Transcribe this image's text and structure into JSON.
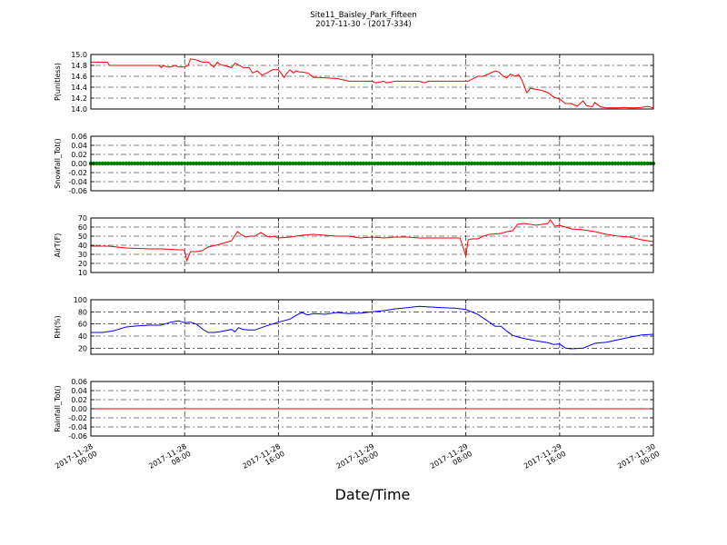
{
  "figure": {
    "title_line1": "Site11_Baisley_Park_Fifteen",
    "title_line2": "2017-11-30 - (2017-334)",
    "xlabel": "Date/Time"
  },
  "x_axis": {
    "tick_labels": [
      [
        "2017-11-28",
        "00:00"
      ],
      [
        "2017-11-28",
        "08:00"
      ],
      [
        "2017-11-28",
        "16:00"
      ],
      [
        "2017-11-29",
        "00:00"
      ],
      [
        "2017-11-29",
        "08:00"
      ],
      [
        "2017-11-29",
        "16:00"
      ],
      [
        "2017-11-30",
        "00:00"
      ]
    ],
    "range_hours": [
      0,
      48
    ]
  },
  "chart_data": [
    {
      "type": "line",
      "ylabel": "P(unitless)",
      "ylim": [
        14.0,
        15.0
      ],
      "yticks": [
        14.0,
        14.2,
        14.4,
        14.6,
        14.8,
        15.0
      ],
      "ytick_labels": [
        "14.0",
        "14.2",
        "14.4",
        "14.6",
        "14.8",
        "15.0"
      ],
      "color": "#ff0000",
      "marker": false,
      "grid": true,
      "series": [
        {
          "x_hours": [
            0,
            1.4,
            1.6,
            5.8,
            6.0,
            6.2,
            6.5,
            6.8,
            7.2,
            7.5,
            8.0,
            8.3,
            8.5,
            9.0,
            9.5,
            10.0,
            10.5,
            10.8,
            11.0,
            11.5,
            12.0,
            12.3,
            12.6,
            13.0,
            13.5,
            13.8,
            14.2,
            14.6,
            15.0,
            15.5,
            16.0,
            16.5,
            16.7,
            17.0,
            17.3,
            17.5,
            17.8,
            18.0,
            18.5,
            19.0,
            19.5,
            20.0,
            21.0,
            22.0,
            23.0,
            24.0,
            24.3,
            25.0,
            25.2,
            26.0,
            28.0,
            28.5,
            28.8,
            30.0,
            32.0,
            32.2,
            33.0,
            33.5,
            34.0,
            34.5,
            34.8,
            35.2,
            35.5,
            35.8,
            36.2,
            36.5,
            36.8,
            37.2,
            37.5,
            38.0,
            38.5,
            39.0,
            39.5,
            40.0,
            40.5,
            41.0,
            41.5,
            42.0,
            42.3,
            42.8,
            43.0,
            43.5,
            44.0,
            44.5,
            45.0,
            45.5,
            46.0,
            46.5,
            47.0,
            47.5,
            48.0
          ],
          "values": [
            14.86,
            14.86,
            14.8,
            14.8,
            14.76,
            14.8,
            14.77,
            14.77,
            14.8,
            14.77,
            14.77,
            14.8,
            14.92,
            14.9,
            14.86,
            14.86,
            14.77,
            14.86,
            14.82,
            14.79,
            14.76,
            14.84,
            14.81,
            14.76,
            14.76,
            14.66,
            14.7,
            14.62,
            14.66,
            14.72,
            14.72,
            14.58,
            14.65,
            14.72,
            14.66,
            14.7,
            14.68,
            14.68,
            14.66,
            14.58,
            14.58,
            14.57,
            14.56,
            14.51,
            14.51,
            14.51,
            14.48,
            14.51,
            14.48,
            14.51,
            14.51,
            14.48,
            14.51,
            14.51,
            14.51,
            14.51,
            14.6,
            14.6,
            14.65,
            14.7,
            14.68,
            14.6,
            14.57,
            14.64,
            14.6,
            14.63,
            14.52,
            14.3,
            14.38,
            14.36,
            14.34,
            14.3,
            14.22,
            14.18,
            14.1,
            14.1,
            14.05,
            14.15,
            14.06,
            14.04,
            14.12,
            14.04,
            14.02,
            14.02,
            14.02,
            14.03,
            14.02,
            14.02,
            14.03,
            14.05,
            14.02
          ]
        }
      ]
    },
    {
      "type": "line",
      "ylabel": "Snowfall_Tot()",
      "ylim": [
        -0.06,
        0.06
      ],
      "yticks": [
        -0.06,
        -0.04,
        -0.02,
        0.0,
        0.02,
        0.04,
        0.06
      ],
      "ytick_labels": [
        "-0.06",
        "-0.04",
        "-0.02",
        "0.00",
        "0.02",
        "0.04",
        "0.06"
      ],
      "color": "#008000",
      "marker": true,
      "grid": true,
      "series": [
        {
          "x_hours": [
            0,
            48
          ],
          "values": [
            0,
            0
          ]
        }
      ]
    },
    {
      "type": "line",
      "ylabel": "AirT(F)",
      "ylim": [
        10,
        70
      ],
      "yticks": [
        10,
        20,
        30,
        40,
        50,
        60,
        70
      ],
      "ytick_labels": [
        "10",
        "20",
        "30",
        "40",
        "50",
        "60",
        "70"
      ],
      "color": "#ff0000",
      "marker": false,
      "grid": true,
      "series": [
        {
          "x_hours": [
            0,
            1.5,
            3.0,
            5.0,
            6.0,
            7.5,
            7.9,
            8.0,
            8.2,
            8.5,
            9.0,
            9.5,
            10.0,
            11.0,
            12.0,
            12.5,
            12.8,
            13.2,
            13.6,
            14.0,
            14.5,
            15.0,
            15.3,
            15.6,
            16.0,
            17.0,
            17.5,
            18.0,
            19.0,
            20.0,
            21.0,
            22.0,
            23.0,
            24.0,
            25.0,
            26.0,
            27.0,
            28.0,
            30.0,
            31.5,
            32.0,
            32.2,
            32.5,
            33.0,
            33.5,
            34.0,
            35.0,
            35.5,
            36.0,
            36.4,
            37.0,
            38.0,
            38.5,
            39.0,
            39.2,
            39.6,
            40.0,
            41.0,
            42.0,
            43.0,
            44.0,
            45.0,
            46.0,
            47.0,
            48.0
          ],
          "values": [
            39,
            39,
            37,
            36,
            36,
            35,
            35,
            34,
            23,
            33,
            33,
            34,
            38,
            41,
            45,
            55,
            52,
            49,
            50,
            50,
            54,
            50,
            49,
            50,
            48,
            49,
            50,
            51,
            52,
            51,
            50,
            50,
            48,
            49,
            48,
            49,
            49,
            48,
            48,
            48,
            28,
            46,
            47,
            47,
            50,
            52,
            53,
            55,
            56,
            63,
            64,
            62,
            63,
            64,
            68,
            61,
            62,
            58,
            57,
            55,
            52,
            50,
            49,
            46,
            44
          ]
        }
      ]
    },
    {
      "type": "line",
      "ylabel": "RH(%)",
      "ylim": [
        10,
        100
      ],
      "yticks": [
        20,
        40,
        60,
        80,
        100
      ],
      "ytick_labels": [
        "20",
        "40",
        "60",
        "80",
        "100"
      ],
      "color": "#0000ff",
      "marker": false,
      "grid": true,
      "series": [
        {
          "x_hours": [
            0,
            1.0,
            2.0,
            3.0,
            4.0,
            5.0,
            6.0,
            6.8,
            7.5,
            8.0,
            8.5,
            9.0,
            9.5,
            10.0,
            10.5,
            11.0,
            12.0,
            12.3,
            12.6,
            13.0,
            13.5,
            14.0,
            15.0,
            15.5,
            16.0,
            17.0,
            17.5,
            18.0,
            18.5,
            19.0,
            20.0,
            21.0,
            22.0,
            23.0,
            24.0,
            25.0,
            26.0,
            27.0,
            28.0,
            29.0,
            30.0,
            31.0,
            32.0,
            33.0,
            34.0,
            34.5,
            35.0,
            35.5,
            36.0,
            36.5,
            37.0,
            38.0,
            39.0,
            39.5,
            40.0,
            40.5,
            41.0,
            42.0,
            43.0,
            44.0,
            45.0,
            46.0,
            47.0,
            48.0
          ],
          "values": [
            46,
            46,
            49,
            55,
            57,
            58,
            58,
            63,
            65,
            62,
            63,
            60,
            52,
            46,
            46,
            47,
            51,
            47,
            54,
            51,
            50,
            50,
            57,
            60,
            63,
            68,
            74,
            79,
            75,
            77,
            76,
            79,
            77,
            78,
            80,
            82,
            85,
            87,
            89,
            88,
            87,
            86,
            84,
            76,
            63,
            56,
            56,
            48,
            41,
            38,
            36,
            32,
            29,
            26,
            27,
            20,
            19,
            20,
            28,
            30,
            34,
            38,
            42,
            43
          ]
        }
      ]
    },
    {
      "type": "line",
      "ylabel": "Rainfall_Tot()",
      "ylim": [
        -0.06,
        0.06
      ],
      "yticks": [
        -0.06,
        -0.04,
        -0.02,
        0.0,
        0.02,
        0.04,
        0.06
      ],
      "ytick_labels": [
        "-0.06",
        "-0.04",
        "-0.02",
        "0.00",
        "0.02",
        "0.04",
        "0.06"
      ],
      "color": "#ff0000",
      "marker": false,
      "grid": true,
      "series": [
        {
          "x_hours": [
            0,
            48
          ],
          "values": [
            0,
            0
          ]
        }
      ]
    }
  ]
}
